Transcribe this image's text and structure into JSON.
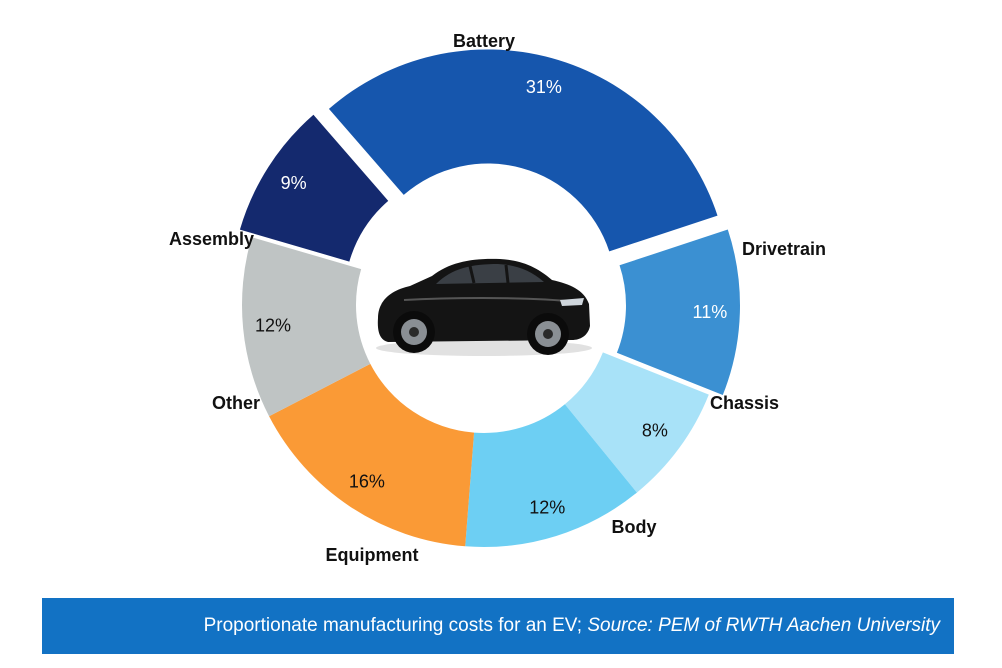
{
  "chart_data": {
    "type": "pie",
    "donut": true,
    "slices": [
      {
        "label": "Battery",
        "percent_label": "31%",
        "value": 31,
        "color": "#1656ad",
        "text_color": "#ffffff",
        "exploded": true
      },
      {
        "label": "Drivetrain",
        "percent_label": "11%",
        "value": 11,
        "color": "#3b90d2",
        "text_color": "#ffffff",
        "exploded": true
      },
      {
        "label": "Chassis",
        "percent_label": "8%",
        "value": 8,
        "color": "#a8e2f8",
        "text_color": "#111111",
        "exploded": false
      },
      {
        "label": "Body",
        "percent_label": "12%",
        "value": 12,
        "color": "#6dcff3",
        "text_color": "#111111",
        "exploded": false
      },
      {
        "label": "Equipment",
        "percent_label": "16%",
        "value": 16,
        "color": "#fa9a36",
        "text_color": "#111111",
        "exploded": false
      },
      {
        "label": "Other",
        "percent_label": "12%",
        "value": 12,
        "color": "#bfc4c4",
        "text_color": "#111111",
        "exploded": false
      },
      {
        "label": "Assembly",
        "percent_label": "9%",
        "value": 9,
        "color": "#14296e",
        "text_color": "#ffffff",
        "exploded": true
      }
    ],
    "center_image": "black-electric-car"
  },
  "footer": {
    "caption": "Proportionate manufacturing costs for an EV; ",
    "source": "Source: PEM of RWTH Aachen University",
    "background_color": "#1272c4"
  }
}
